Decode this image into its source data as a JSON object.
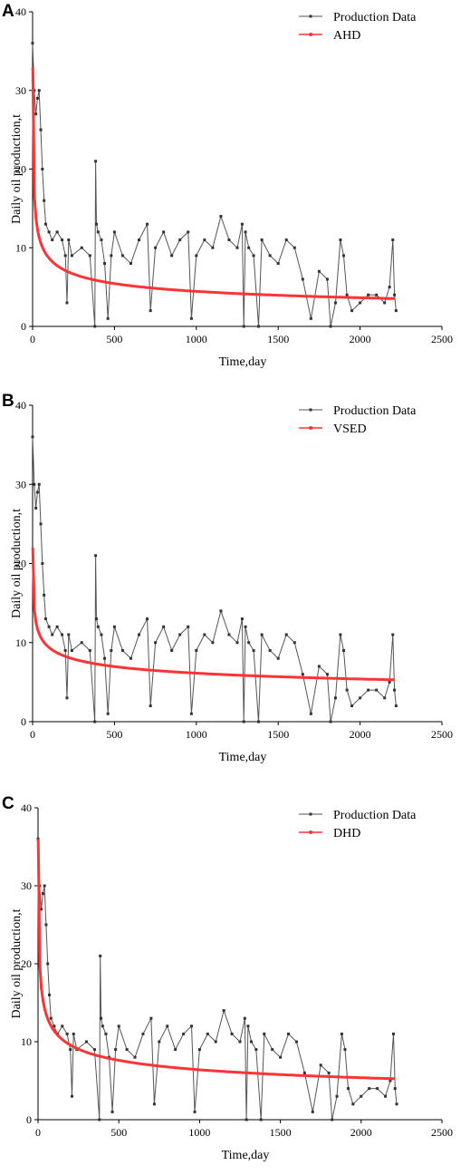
{
  "panels": [
    {
      "letter": "A",
      "chart_data": {
        "type": "line",
        "xlabel": "Time,day",
        "ylabel": "Daily oil production,t",
        "xlim": [
          0,
          2500
        ],
        "ylim": [
          0,
          40
        ],
        "xticks": [
          "0",
          "500",
          "1000",
          "1500",
          "2000",
          "2500"
        ],
        "yticks": [
          "0",
          "10",
          "20",
          "30",
          "40"
        ],
        "legend_position": "top-right",
        "series": [
          {
            "name": "Production Data",
            "color": "#555555",
            "x": [
              0,
              10,
              20,
              30,
              40,
              50,
              60,
              70,
              80,
              100,
              120,
              150,
              180,
              200,
              210,
              220,
              240,
              300,
              350,
              380,
              385,
              390,
              400,
              420,
              440,
              460,
              480,
              500,
              550,
              600,
              650,
              700,
              720,
              750,
              800,
              850,
              900,
              950,
              970,
              1000,
              1050,
              1100,
              1150,
              1200,
              1250,
              1280,
              1290,
              1300,
              1320,
              1350,
              1380,
              1400,
              1450,
              1500,
              1550,
              1600,
              1650,
              1700,
              1750,
              1800,
              1820,
              1850,
              1880,
              1900,
              1920,
              1950,
              2000,
              2050,
              2100,
              2150,
              2180,
              2200,
              2210,
              2220
            ],
            "y": [
              36,
              30,
              27,
              29,
              30,
              25,
              20,
              16,
              13,
              12,
              11,
              12,
              11,
              9,
              3,
              11,
              9,
              10,
              9,
              0,
              21,
              13,
              12,
              11,
              8,
              1,
              9,
              12,
              9,
              8,
              11,
              13,
              2,
              10,
              12,
              9,
              11,
              12,
              1,
              9,
              11,
              10,
              14,
              11,
              10,
              13,
              0,
              12,
              10,
              9,
              0,
              11,
              9,
              8,
              11,
              10,
              6,
              1,
              7,
              6,
              0,
              3,
              11,
              9,
              4,
              2,
              3,
              4,
              4,
              3,
              5,
              11,
              4,
              2
            ]
          },
          {
            "name": "AHD",
            "color": "#ff3333",
            "fit": {
              "a": 33.0,
              "b": 0.29
            }
          }
        ]
      }
    },
    {
      "letter": "B",
      "chart_data": {
        "type": "line",
        "xlabel": "Time,day",
        "ylabel": "Daily oil production,t",
        "xlim": [
          0,
          2500
        ],
        "ylim": [
          0,
          40
        ],
        "xticks": [
          "0",
          "500",
          "1000",
          "1500",
          "2000",
          "2500"
        ],
        "yticks": [
          "0",
          "10",
          "20",
          "30",
          "40"
        ],
        "legend_position": "top-right",
        "series": [
          {
            "name": "Production Data",
            "color": "#555555",
            "x": [
              0,
              10,
              20,
              30,
              40,
              50,
              60,
              70,
              80,
              100,
              120,
              150,
              180,
              200,
              210,
              220,
              240,
              300,
              350,
              380,
              385,
              390,
              400,
              420,
              440,
              460,
              480,
              500,
              550,
              600,
              650,
              700,
              720,
              750,
              800,
              850,
              900,
              950,
              970,
              1000,
              1050,
              1100,
              1150,
              1200,
              1250,
              1280,
              1290,
              1300,
              1320,
              1350,
              1380,
              1400,
              1450,
              1500,
              1550,
              1600,
              1650,
              1700,
              1750,
              1800,
              1820,
              1850,
              1880,
              1900,
              1920,
              1950,
              2000,
              2050,
              2100,
              2150,
              2180,
              2200,
              2210,
              2220
            ],
            "y": [
              36,
              30,
              27,
              29,
              30,
              25,
              20,
              16,
              13,
              12,
              11,
              12,
              11,
              9,
              3,
              11,
              9,
              10,
              9,
              0,
              21,
              13,
              12,
              11,
              8,
              1,
              9,
              12,
              9,
              8,
              11,
              13,
              2,
              10,
              12,
              9,
              11,
              12,
              1,
              9,
              11,
              10,
              14,
              11,
              10,
              13,
              0,
              12,
              10,
              9,
              0,
              11,
              9,
              8,
              11,
              10,
              6,
              1,
              7,
              6,
              0,
              3,
              11,
              9,
              4,
              2,
              3,
              4,
              4,
              3,
              5,
              11,
              4,
              2
            ]
          },
          {
            "name": "VSED",
            "color": "#ff3333",
            "fit": {
              "a": 22.0,
              "b": 0.185
            }
          }
        ]
      }
    },
    {
      "letter": "C",
      "chart_data": {
        "type": "line",
        "xlabel": "Time,day",
        "ylabel": "Daily oil production,t",
        "xlim": [
          0,
          2500
        ],
        "ylim": [
          0,
          40
        ],
        "xticks": [
          "0",
          "500",
          "1000",
          "1500",
          "2000",
          "2500"
        ],
        "yticks": [
          "0",
          "10",
          "20",
          "30",
          "40"
        ],
        "legend_position": "top-right",
        "series": [
          {
            "name": "Production Data",
            "color": "#555555",
            "x": [
              0,
              10,
              20,
              30,
              40,
              50,
              60,
              70,
              80,
              100,
              120,
              150,
              180,
              200,
              210,
              220,
              240,
              300,
              350,
              380,
              385,
              390,
              400,
              420,
              440,
              460,
              480,
              500,
              550,
              600,
              650,
              700,
              720,
              750,
              800,
              850,
              900,
              950,
              970,
              1000,
              1050,
              1100,
              1150,
              1200,
              1250,
              1280,
              1290,
              1300,
              1320,
              1350,
              1380,
              1400,
              1450,
              1500,
              1550,
              1600,
              1650,
              1700,
              1750,
              1800,
              1820,
              1850,
              1880,
              1900,
              1920,
              1950,
              2000,
              2050,
              2100,
              2150,
              2180,
              2200,
              2210,
              2220
            ],
            "y": [
              36,
              30,
              27,
              29,
              30,
              25,
              20,
              16,
              13,
              12,
              11,
              12,
              11,
              9,
              3,
              11,
              9,
              10,
              9,
              0,
              21,
              13,
              12,
              11,
              8,
              1,
              9,
              12,
              9,
              8,
              11,
              13,
              2,
              10,
              12,
              9,
              11,
              12,
              1,
              9,
              11,
              10,
              14,
              11,
              10,
              13,
              0,
              12,
              10,
              9,
              0,
              11,
              9,
              8,
              11,
              10,
              6,
              1,
              7,
              6,
              0,
              3,
              11,
              9,
              4,
              2,
              3,
              4,
              4,
              3,
              5,
              11,
              4,
              2
            ]
          },
          {
            "name": "DHD",
            "color": "#ff3333",
            "fit": {
              "a": 36.0,
              "b": 0.25
            }
          }
        ]
      }
    }
  ]
}
